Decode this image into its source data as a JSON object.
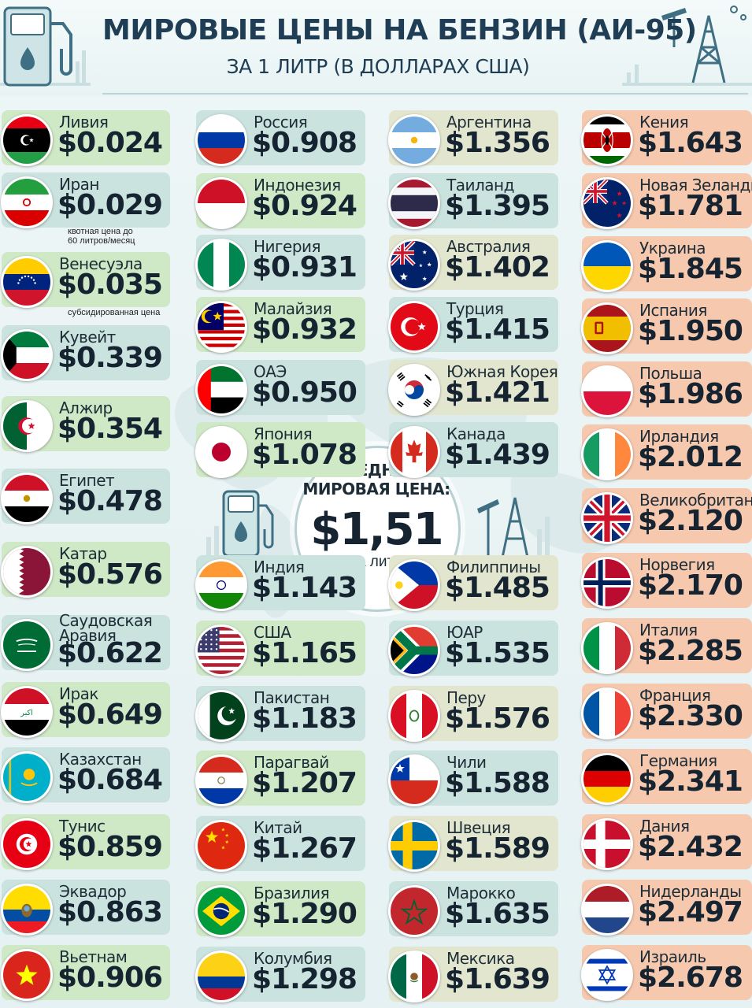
{
  "header": {
    "title": "МИРОВЫЕ ЦЕНЫ НА БЕНЗИН (АИ-95)",
    "subtitle": "ЗА 1 ЛИТР (В ДОЛЛАРАХ США)"
  },
  "center": {
    "label_line1": "СРЕДНЯЯ",
    "label_line2": "МИРОВАЯ ЦЕНА:",
    "value": "$1,51",
    "unit": "за литр"
  },
  "colors": {
    "green_card": "#cfe8c6",
    "teal_card": "#cbe3df",
    "tan_card": "#e3e6cf",
    "peach_card": "#f6c9ae",
    "title_color": "#1f3e55"
  },
  "chart_data": {
    "type": "table",
    "title": "МИРОВЫЕ ЦЕНЫ НА БЕНЗИН (АИ-95)",
    "subtitle": "ЗА 1 ЛИТР (В ДОЛЛАРАХ США)",
    "average": {
      "label": "СРЕДНЯЯ МИРОВАЯ ЦЕНА:",
      "value": 1.51,
      "display": "$1,51",
      "unit": "за литр"
    },
    "columns": [
      [
        {
          "name": "Ливия",
          "price": "$0.024",
          "value": 0.024,
          "flag": "libya"
        },
        {
          "name": "Иран",
          "price": "$0.029",
          "value": 0.029,
          "flag": "iran",
          "note1": "квотная цена до",
          "note2": "60 литров/месяц"
        },
        {
          "name": "Венесуэла",
          "price": "$0.035",
          "value": 0.035,
          "flag": "venezuela",
          "note1": "субсидированная цена",
          "note2": ""
        },
        {
          "name": "Кувейт",
          "price": "$0.339",
          "value": 0.339,
          "flag": "kuwait"
        },
        {
          "name": "Алжир",
          "price": "$0.354",
          "value": 0.354,
          "flag": "algeria"
        },
        {
          "name": "Египет",
          "price": "$0.478",
          "value": 0.478,
          "flag": "egypt"
        },
        {
          "name": "Катар",
          "price": "$0.576",
          "value": 0.576,
          "flag": "qatar"
        },
        {
          "name": "Саудовская\nАравия",
          "price": "$0.622",
          "value": 0.622,
          "flag": "saudi"
        },
        {
          "name": "Ирак",
          "price": "$0.649",
          "value": 0.649,
          "flag": "iraq"
        },
        {
          "name": "Казахстан",
          "price": "$0.684",
          "value": 0.684,
          "flag": "kazakhstan"
        },
        {
          "name": "Тунис",
          "price": "$0.859",
          "value": 0.859,
          "flag": "tunisia"
        },
        {
          "name": "Эквадор",
          "price": "$0.863",
          "value": 0.863,
          "flag": "ecuador"
        },
        {
          "name": "Вьетнам",
          "price": "$0.906",
          "value": 0.906,
          "flag": "vietnam"
        }
      ],
      [
        {
          "name": "Россия",
          "price": "$0.908",
          "value": 0.908,
          "flag": "russia"
        },
        {
          "name": "Индонезия",
          "price": "$0.924",
          "value": 0.924,
          "flag": "indonesia"
        },
        {
          "name": "Нигерия",
          "price": "$0.931",
          "value": 0.931,
          "flag": "nigeria"
        },
        {
          "name": "Малайзия",
          "price": "$0.932",
          "value": 0.932,
          "flag": "malaysia"
        },
        {
          "name": "ОАЭ",
          "price": "$0.950",
          "value": 0.95,
          "flag": "uae"
        },
        {
          "name": "Япония",
          "price": "$1.078",
          "value": 1.078,
          "flag": "japan"
        },
        {
          "name": "Индия",
          "price": "$1.143",
          "value": 1.143,
          "flag": "india"
        },
        {
          "name": "США",
          "price": "$1.165",
          "value": 1.165,
          "flag": "usa"
        },
        {
          "name": "Пакистан",
          "price": "$1.183",
          "value": 1.183,
          "flag": "pakistan"
        },
        {
          "name": "Парагвай",
          "price": "$1.207",
          "value": 1.207,
          "flag": "paraguay"
        },
        {
          "name": "Китай",
          "price": "$1.267",
          "value": 1.267,
          "flag": "china"
        },
        {
          "name": "Бразилия",
          "price": "$1.290",
          "value": 1.29,
          "flag": "brazil"
        },
        {
          "name": "Колумбия",
          "price": "$1.298",
          "value": 1.298,
          "flag": "colombia"
        }
      ],
      [
        {
          "name": "Аргентина",
          "price": "$1.356",
          "value": 1.356,
          "flag": "argentina"
        },
        {
          "name": "Таиланд",
          "price": "$1.395",
          "value": 1.395,
          "flag": "thailand"
        },
        {
          "name": "Австралия",
          "price": "$1.402",
          "value": 1.402,
          "flag": "australia"
        },
        {
          "name": "Турция",
          "price": "$1.415",
          "value": 1.415,
          "flag": "turkey"
        },
        {
          "name": "Южная Корея",
          "price": "$1.421",
          "value": 1.421,
          "flag": "korea"
        },
        {
          "name": "Канада",
          "price": "$1.439",
          "value": 1.439,
          "flag": "canada"
        },
        {
          "name": "Филиппины",
          "price": "$1.485",
          "value": 1.485,
          "flag": "philippines"
        },
        {
          "name": "ЮАР",
          "price": "$1.535",
          "value": 1.535,
          "flag": "southafrica"
        },
        {
          "name": "Перу",
          "price": "$1.576",
          "value": 1.576,
          "flag": "peru"
        },
        {
          "name": "Чили",
          "price": "$1.588",
          "value": 1.588,
          "flag": "chile"
        },
        {
          "name": "Швеция",
          "price": "$1.589",
          "value": 1.589,
          "flag": "sweden"
        },
        {
          "name": "Марокко",
          "price": "$1.635",
          "value": 1.635,
          "flag": "morocco"
        },
        {
          "name": "Мексика",
          "price": "$1.639",
          "value": 1.639,
          "flag": "mexico"
        }
      ],
      [
        {
          "name": "Кения",
          "price": "$1.643",
          "value": 1.643,
          "flag": "kenya"
        },
        {
          "name": "Новая Зеланди",
          "price": "$1.781",
          "value": 1.781,
          "flag": "newzealand"
        },
        {
          "name": "Украина",
          "price": "$1.845",
          "value": 1.845,
          "flag": "ukraine"
        },
        {
          "name": "Испания",
          "price": "$1.950",
          "value": 1.95,
          "flag": "spain"
        },
        {
          "name": "Польша",
          "price": "$1.986",
          "value": 1.986,
          "flag": "poland"
        },
        {
          "name": "Ирландия",
          "price": "$2.012",
          "value": 2.012,
          "flag": "ireland"
        },
        {
          "name": "Великобритан",
          "price": "$2.120",
          "value": 2.12,
          "flag": "uk"
        },
        {
          "name": "Норвегия",
          "price": "$2.170",
          "value": 2.17,
          "flag": "norway"
        },
        {
          "name": "Италия",
          "price": "$2.285",
          "value": 2.285,
          "flag": "italy"
        },
        {
          "name": "Франция",
          "price": "$2.330",
          "value": 2.33,
          "flag": "france"
        },
        {
          "name": "Германия",
          "price": "$2.341",
          "value": 2.341,
          "flag": "germany"
        },
        {
          "name": "Дания",
          "price": "$2.432",
          "value": 2.432,
          "flag": "denmark"
        },
        {
          "name": "Нидерланды",
          "price": "$2.497",
          "value": 2.497,
          "flag": "netherlands"
        },
        {
          "name": "Израиль",
          "price": "$2.678",
          "value": 2.678,
          "flag": "israel"
        }
      ]
    ]
  }
}
